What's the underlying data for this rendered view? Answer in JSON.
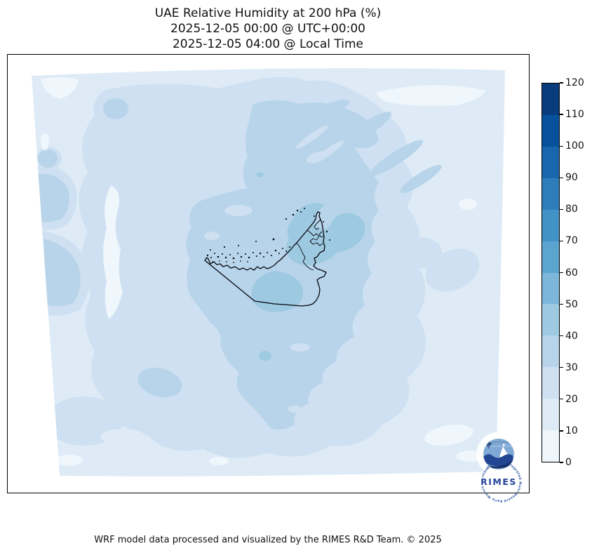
{
  "title": {
    "line1": "UAE Relative Humidity at 200 hPa (%)",
    "line2": "2025-12-05 00:00 @ UTC+00:00",
    "line3": "2025-12-05 04:00 @ Local Time"
  },
  "footer": {
    "credit": "WRF model data processed and visualized by the RIMES R&D Team. © 2025"
  },
  "colorbar": {
    "orientation": "vertical",
    "min": 0,
    "max": 120,
    "tick_labels": [
      0,
      10,
      20,
      30,
      40,
      50,
      60,
      70,
      80,
      90,
      100,
      110,
      120
    ],
    "band_colors_bottom_to_top": [
      "#eff6fc",
      "#deebf7",
      "#cee0f1",
      "#b7d4ea",
      "#9ecae1",
      "#7cb7da",
      "#5ca4d0",
      "#4292c6",
      "#2d7dbb",
      "#1a66ad",
      "#08519c",
      "#083c7d"
    ]
  },
  "logo": {
    "text": "RIMES",
    "ring_text": "Regional Integrated Multi-Hazard Early Warning System"
  },
  "chart_data": {
    "type": "filled_contour_map",
    "title": "UAE Relative Humidity at 200 hPa (%)",
    "valid_time_utc": "2025-12-05 00:00 @ UTC+00:00",
    "valid_time_local": "2025-12-05 04:00 @ Local Time",
    "variable": "Relative Humidity",
    "level": "200 hPa",
    "units": "%",
    "region": "UAE and surrounding Arabian Peninsula / Persian Gulf model domain",
    "contour_levels": [
      0,
      10,
      20,
      30,
      40,
      50,
      60,
      70,
      80,
      90,
      100,
      110,
      120
    ],
    "colormap": "Blues (discrete, 12 bands)",
    "band_colors_low_to_high": [
      "#eff6fc",
      "#deebf7",
      "#cee0f1",
      "#b7d4ea",
      "#9ecae1",
      "#7cb7da",
      "#5ca4d0",
      "#4292c6",
      "#2d7dbb",
      "#1a66ad",
      "#08519c",
      "#083c7d"
    ],
    "observed_field_range_percent": [
      0,
      50
    ],
    "field_description": [
      "Most of the model domain shows 10-40% relative humidity",
      "Local maxima of 40-50% over the northern UAE / Dubai-Sharjah area and in a blob just south of the UAE border",
      "Driest patches (0-10%) along the western edge, a sinuous strip on the left, the top-right sliver and bottom corners of the domain",
      "UAE political boundary and island dots overlaid in black"
    ]
  }
}
